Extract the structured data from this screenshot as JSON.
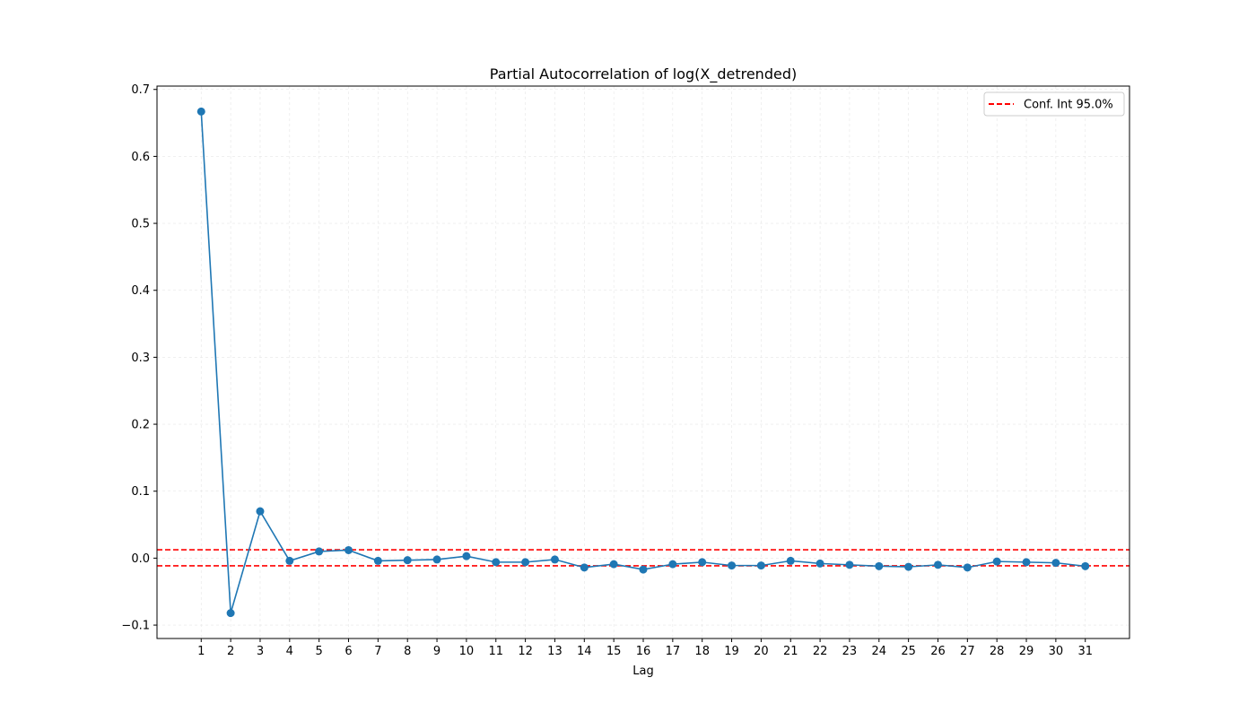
{
  "chart_data": {
    "type": "line",
    "title": "Partial Autocorrelation of log(X_detrended)",
    "xlabel": "Lag",
    "ylabel": "",
    "x": [
      1,
      2,
      3,
      4,
      5,
      6,
      7,
      8,
      9,
      10,
      11,
      12,
      13,
      14,
      15,
      16,
      17,
      18,
      19,
      20,
      21,
      22,
      23,
      24,
      25,
      26,
      27,
      28,
      29,
      30,
      31
    ],
    "xticks": [
      "1",
      "2",
      "3",
      "4",
      "5",
      "6",
      "7",
      "8",
      "9",
      "10",
      "11",
      "12",
      "13",
      "14",
      "15",
      "16",
      "17",
      "18",
      "19",
      "20",
      "21",
      "22",
      "23",
      "24",
      "25",
      "26",
      "27",
      "28",
      "29",
      "30",
      "31"
    ],
    "xlim": [
      -0.5,
      32.5
    ],
    "ylim": [
      -0.12,
      0.705
    ],
    "yticks": [
      -0.1,
      0.0,
      0.1,
      0.2,
      0.3,
      0.4,
      0.5,
      0.6,
      0.7
    ],
    "ytick_labels": [
      "−0.1",
      "0.0",
      "0.1",
      "0.2",
      "0.3",
      "0.4",
      "0.5",
      "0.6",
      "0.7"
    ],
    "grid": true,
    "legend_position": "top-right",
    "series": [
      {
        "color": "#1f77b4",
        "values": [
          0.667,
          -0.082,
          0.07,
          -0.004,
          0.01,
          0.012,
          -0.004,
          -0.003,
          -0.002,
          0.003,
          -0.006,
          -0.006,
          -0.002,
          -0.014,
          -0.009,
          -0.017,
          -0.009,
          -0.006,
          -0.011,
          -0.011,
          -0.004,
          -0.008,
          -0.01,
          -0.012,
          -0.013,
          -0.01,
          -0.014,
          -0.005,
          -0.006,
          -0.007,
          -0.012
        ]
      }
    ],
    "conf_int": {
      "label": "Conf. Int 95.0%",
      "color": "#ff0000",
      "upper": 0.0125,
      "lower": -0.0115
    }
  }
}
